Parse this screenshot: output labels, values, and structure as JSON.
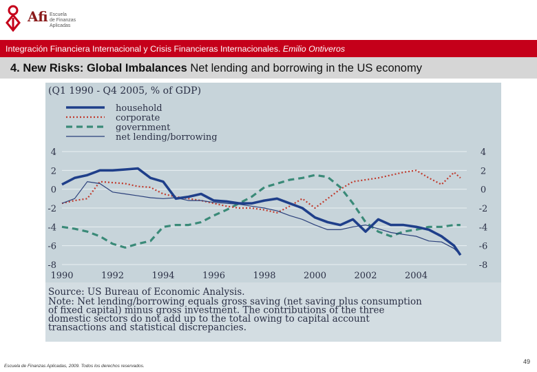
{
  "header": {
    "logo_text": "Afi",
    "logo_sub": [
      "Escuela",
      "de Finanzas",
      "Aplicadas"
    ],
    "course_title": "Integración Financiera Internacional y Crisis Financieras Internacionales.",
    "author": "Emilio Ontiveros"
  },
  "slide": {
    "title_bold": "4. New Risks: Global Imbalances",
    "title_rest": " Net lending and borrowing in the US economy"
  },
  "footer": {
    "copyright": "Escuela de Finanzas Aplicadas, 2009. Todos los derechos reservados.",
    "page_number": "49"
  },
  "colors": {
    "accent_red": "#c5001a",
    "figure_bg": "#c7d4da",
    "household": "#1f3f8a",
    "corporate": "#c0392b",
    "government": "#3a8a78",
    "net": "#2a3f7a"
  },
  "chart_data": {
    "type": "line",
    "title": "(Q1 1990 - Q4 2005, % of GDP)",
    "x_tick_labels": [
      "1990",
      "1992",
      "1994",
      "1996",
      "1998",
      "2000",
      "2002",
      "2004"
    ],
    "y_tick_labels": [
      "4",
      "2",
      "0",
      "-2",
      "-4",
      "-6",
      "-8"
    ],
    "xlim": [
      1990,
      2006
    ],
    "ylim": [
      -8,
      4
    ],
    "x": [
      1990,
      1990.5,
      1991,
      1991.5,
      1992,
      1992.5,
      1993,
      1993.5,
      1994,
      1994.5,
      1995,
      1995.5,
      1996,
      1996.5,
      1997,
      1997.5,
      1998,
      1998.5,
      1999,
      1999.5,
      2000,
      2000.5,
      2001,
      2001.5,
      2002,
      2002.5,
      2003,
      2003.5,
      2004,
      2004.5,
      2005,
      2005.5,
      2005.75
    ],
    "series": [
      {
        "name": "household",
        "style": "solid-thick",
        "values": [
          0.5,
          1.2,
          1.5,
          2.0,
          2.0,
          2.1,
          2.2,
          1.2,
          0.8,
          -1.0,
          -0.8,
          -0.5,
          -1.2,
          -1.3,
          -1.5,
          -1.5,
          -1.2,
          -1.0,
          -1.5,
          -2.0,
          -3.0,
          -3.5,
          -3.8,
          -3.2,
          -4.5,
          -3.2,
          -3.8,
          -3.8,
          -4.0,
          -4.3,
          -5.0,
          -6.0,
          -7.0
        ]
      },
      {
        "name": "corporate",
        "style": "dotted",
        "values": [
          -1.5,
          -1.2,
          -1.0,
          0.8,
          0.7,
          0.6,
          0.3,
          0.2,
          -0.5,
          -0.8,
          -1.0,
          -1.2,
          -1.5,
          -1.8,
          -2.0,
          -2.0,
          -2.2,
          -2.5,
          -1.8,
          -1.0,
          -2.0,
          -1.0,
          0.0,
          0.8,
          1.0,
          1.2,
          1.5,
          1.8,
          2.0,
          1.2,
          0.5,
          1.8,
          1.2
        ]
      },
      {
        "name": "government",
        "style": "dashed",
        "values": [
          -4.0,
          -4.2,
          -4.5,
          -5.0,
          -5.8,
          -6.2,
          -5.8,
          -5.5,
          -4.0,
          -3.8,
          -3.8,
          -3.5,
          -2.8,
          -2.2,
          -1.5,
          -0.8,
          0.2,
          0.6,
          1.0,
          1.2,
          1.5,
          1.3,
          0.2,
          -1.5,
          -3.5,
          -4.5,
          -5.0,
          -4.5,
          -4.3,
          -4.0,
          -4.0,
          -3.8,
          -3.8
        ]
      },
      {
        "name": "net lending/borrowing",
        "style": "solid-thin",
        "values": [
          -1.5,
          -1.0,
          0.8,
          0.6,
          -0.3,
          -0.5,
          -0.7,
          -0.9,
          -1.0,
          -0.9,
          -1.2,
          -1.2,
          -1.4,
          -1.5,
          -1.6,
          -1.8,
          -2.0,
          -2.3,
          -2.8,
          -3.2,
          -3.8,
          -4.3,
          -4.3,
          -4.0,
          -3.8,
          -4.2,
          -4.6,
          -4.8,
          -5.0,
          -5.5,
          -5.6,
          -6.3,
          -7.0
        ]
      }
    ],
    "source": "Source: US Bureau of Economic Analysis.",
    "note": "Note: Net lending/borrowing equals gross saving (net saving plus consumption of fixed capital) minus gross investment. The contributions of the three domestic sectors do not add up to the total owing to capital account transactions and statistical discrepancies."
  }
}
